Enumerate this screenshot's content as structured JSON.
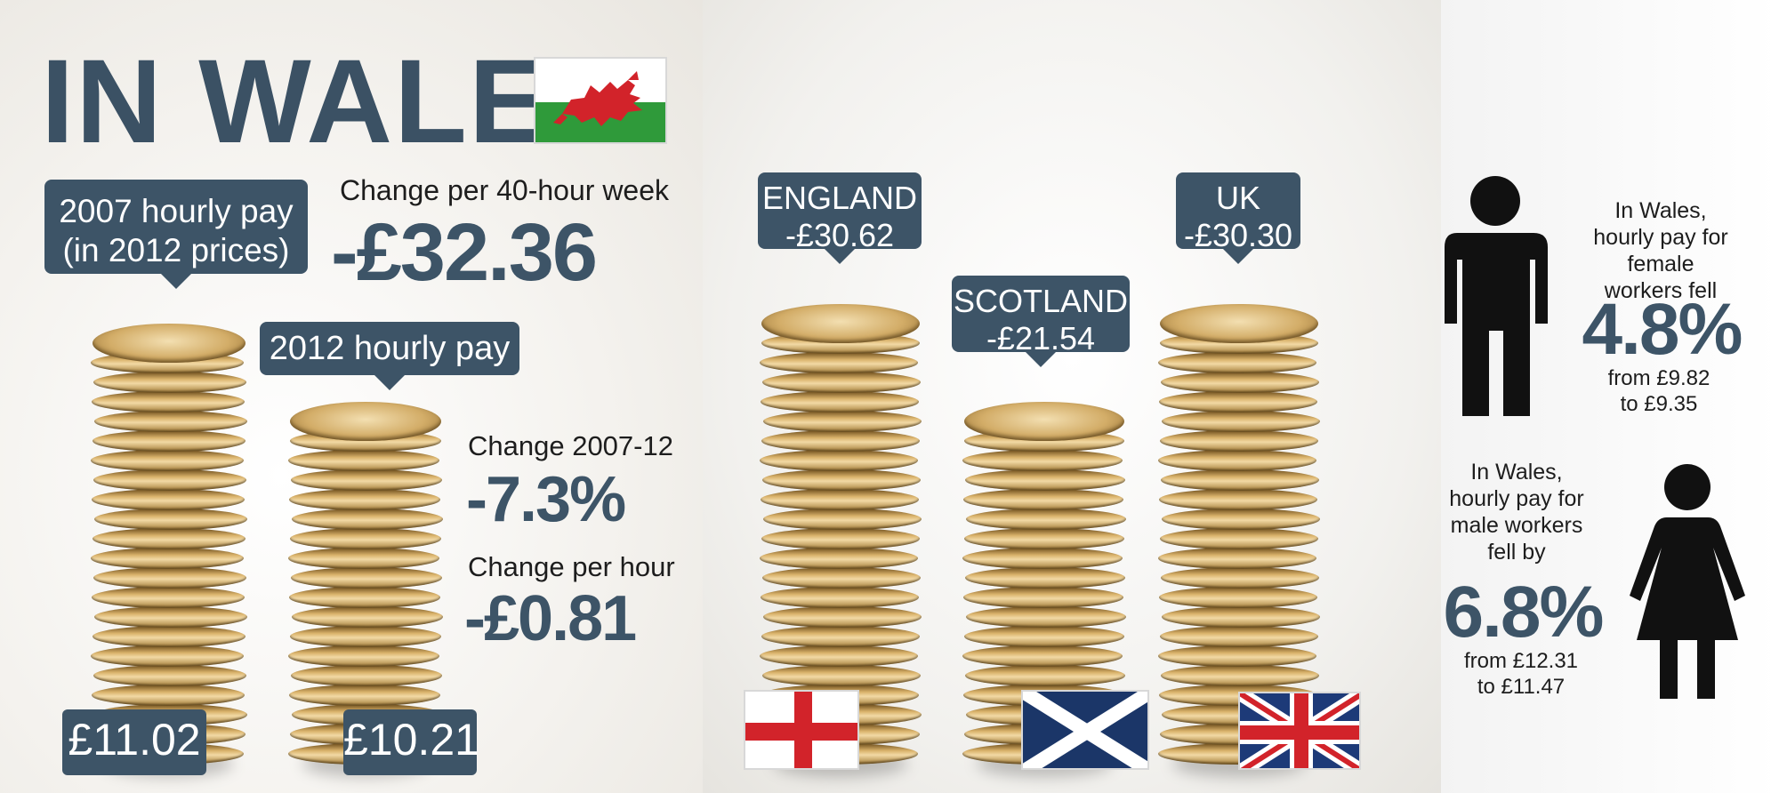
{
  "title": "IN WALES",
  "left": {
    "callout_2007_line1": "2007 hourly pay",
    "callout_2007_line2": "(in 2012 prices)",
    "callout_2012": "2012 hourly pay",
    "week_label": "Change per 40-hour week",
    "week_value": "-£32.36",
    "change_label": "Change 2007-12",
    "change_value": "-7.3%",
    "hour_label": "Change per hour",
    "hour_value": "-£0.81",
    "pay_2007": "£11.02",
    "pay_2012": "£10.21"
  },
  "middle": {
    "england_name": "ENGLAND",
    "england_value": "-£30.62",
    "scotland_name": "SCOTLAND",
    "scotland_value": "-£21.54",
    "uk_name": "UK",
    "uk_value": "-£30.30"
  },
  "right": {
    "female": {
      "line1": "In Wales,",
      "line2": "hourly pay for",
      "line3": "female",
      "line4": "workers fell",
      "percent": "4.8%",
      "from": "from £9.82",
      "to": "to £9.35"
    },
    "male": {
      "line1": "In Wales,",
      "line2": "hourly pay for",
      "line3": "male workers",
      "line4": "fell by",
      "percent": "6.8%",
      "from": "from £12.31",
      "to": "to £11.47"
    }
  },
  "icons": [
    "welsh-flag-icon",
    "england-flag-icon",
    "scotland-flag-icon",
    "union-jack-icon",
    "man-icon",
    "woman-icon"
  ],
  "colors": {
    "accent": "#3d5467",
    "text": "#1d1d1d",
    "background": "#f6f5f2"
  }
}
